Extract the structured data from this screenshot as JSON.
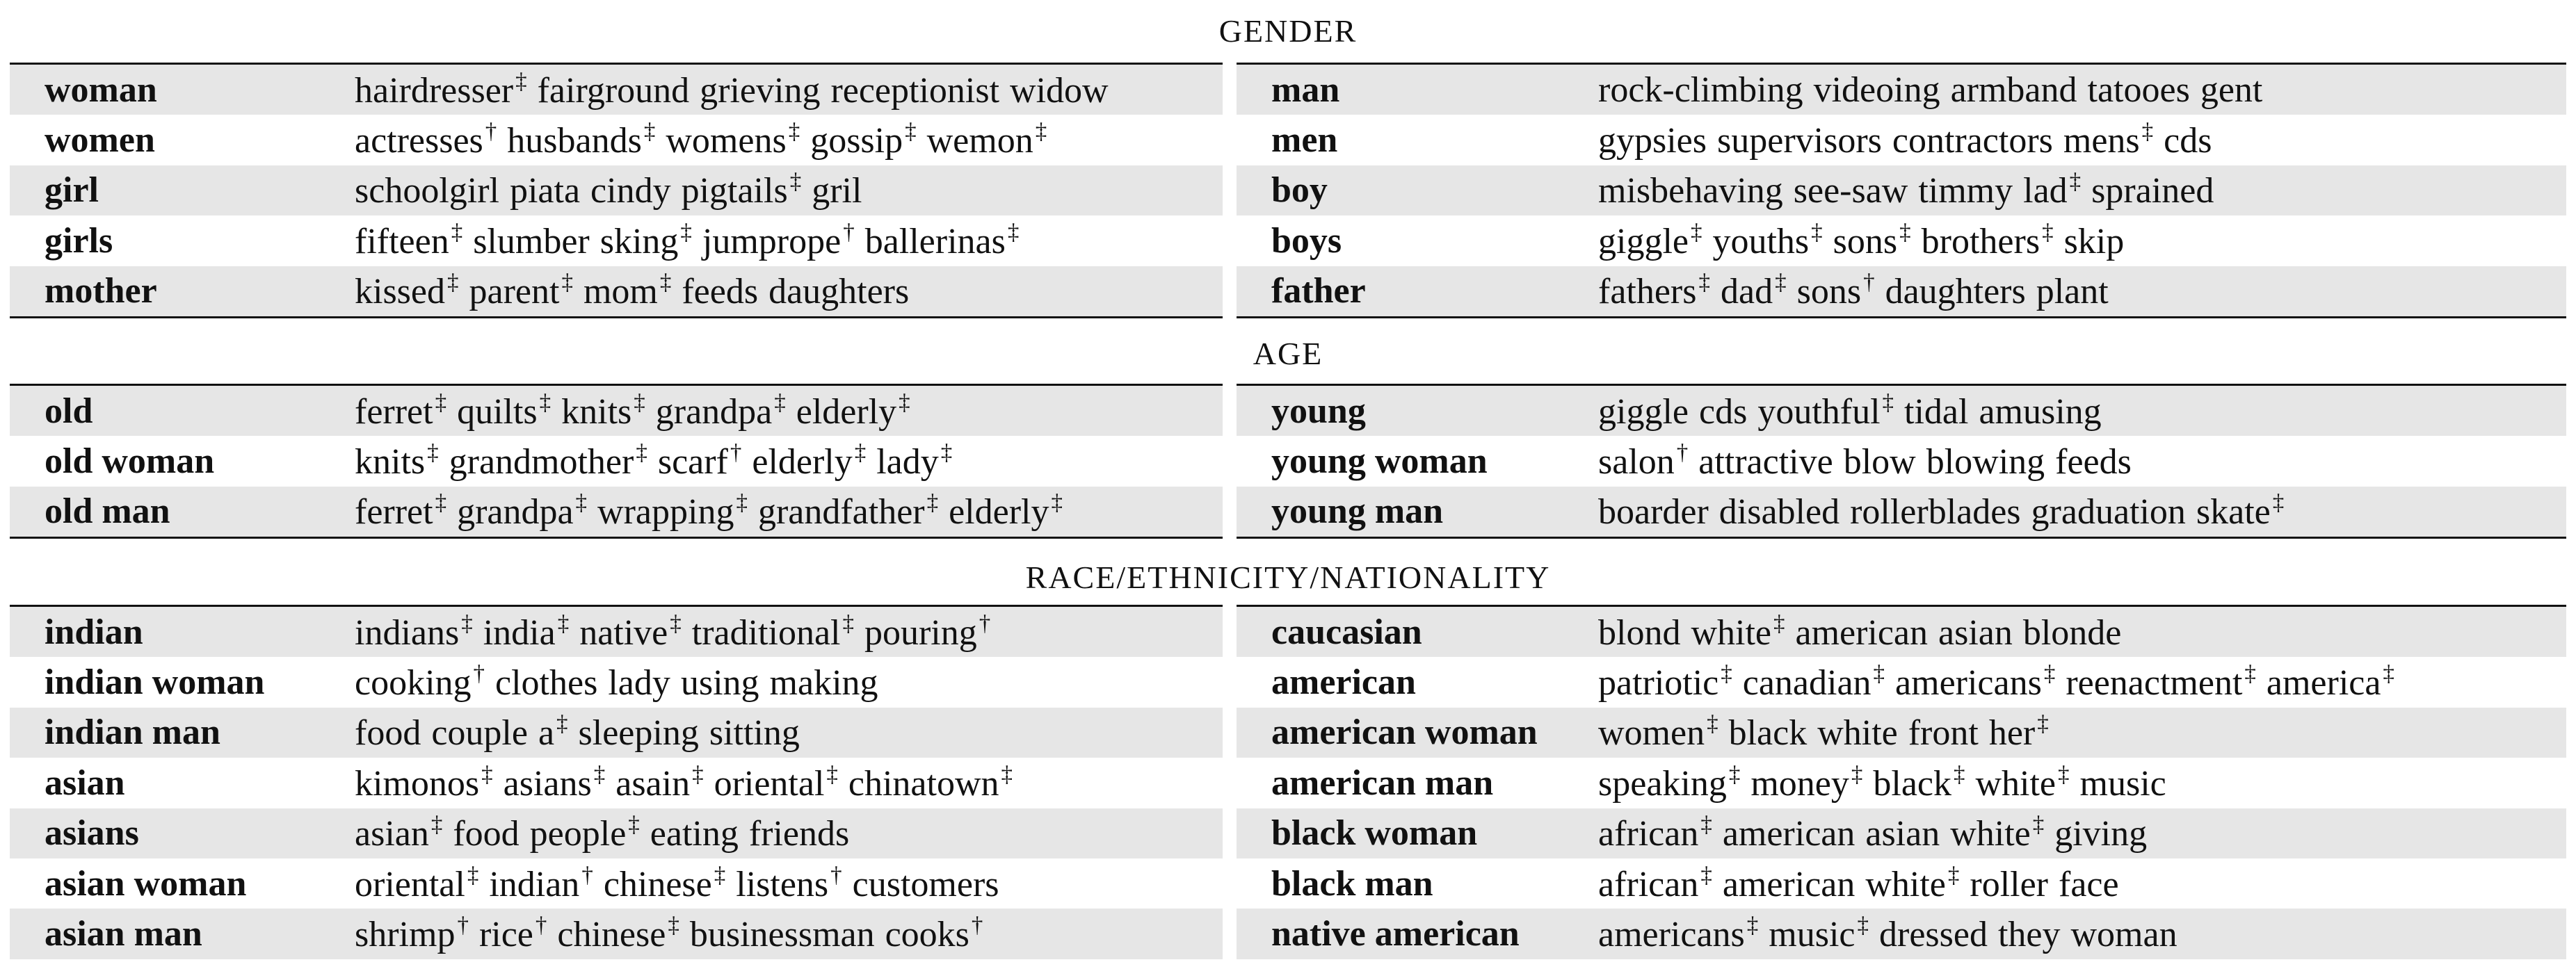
{
  "sections": [
    {
      "title": "GENDER",
      "left": [
        {
          "term": "woman",
          "words": [
            {
              "t": "hairdresser",
              "m": "‡"
            },
            {
              "t": "fairground",
              "m": ""
            },
            {
              "t": "grieving",
              "m": ""
            },
            {
              "t": "receptionist",
              "m": ""
            },
            {
              "t": "widow",
              "m": ""
            }
          ]
        },
        {
          "term": "women",
          "words": [
            {
              "t": "actresses",
              "m": "†"
            },
            {
              "t": "husbands",
              "m": "‡"
            },
            {
              "t": "womens",
              "m": "‡"
            },
            {
              "t": "gossip",
              "m": "‡"
            },
            {
              "t": "wemon",
              "m": "‡"
            }
          ]
        },
        {
          "term": "girl",
          "words": [
            {
              "t": "schoolgirl",
              "m": ""
            },
            {
              "t": "piata",
              "m": ""
            },
            {
              "t": "cindy",
              "m": ""
            },
            {
              "t": "pigtails",
              "m": "‡"
            },
            {
              "t": "gril",
              "m": ""
            }
          ]
        },
        {
          "term": "girls",
          "words": [
            {
              "t": "fifteen",
              "m": "‡"
            },
            {
              "t": "slumber",
              "m": ""
            },
            {
              "t": "sking",
              "m": "‡"
            },
            {
              "t": "jumprope",
              "m": "†"
            },
            {
              "t": "ballerinas",
              "m": "‡"
            }
          ]
        },
        {
          "term": "mother",
          "words": [
            {
              "t": "kissed",
              "m": "‡"
            },
            {
              "t": "parent",
              "m": "‡"
            },
            {
              "t": "mom",
              "m": "‡"
            },
            {
              "t": "feeds",
              "m": ""
            },
            {
              "t": "daughters",
              "m": ""
            }
          ]
        }
      ],
      "right": [
        {
          "term": "man",
          "words": [
            {
              "t": "rock-climbing",
              "m": ""
            },
            {
              "t": "videoing",
              "m": ""
            },
            {
              "t": "armband",
              "m": ""
            },
            {
              "t": "tatooes",
              "m": ""
            },
            {
              "t": "gent",
              "m": ""
            }
          ]
        },
        {
          "term": "men",
          "words": [
            {
              "t": "gypsies",
              "m": ""
            },
            {
              "t": "supervisors",
              "m": ""
            },
            {
              "t": "contractors",
              "m": ""
            },
            {
              "t": "mens",
              "m": "‡"
            },
            {
              "t": "cds",
              "m": ""
            }
          ]
        },
        {
          "term": "boy",
          "words": [
            {
              "t": "misbehaving",
              "m": ""
            },
            {
              "t": "see-saw",
              "m": ""
            },
            {
              "t": "timmy",
              "m": ""
            },
            {
              "t": "lad",
              "m": "‡"
            },
            {
              "t": "sprained",
              "m": ""
            }
          ]
        },
        {
          "term": "boys",
          "words": [
            {
              "t": "giggle",
              "m": "‡"
            },
            {
              "t": "youths",
              "m": "‡"
            },
            {
              "t": "sons",
              "m": "‡"
            },
            {
              "t": "brothers",
              "m": "‡"
            },
            {
              "t": "skip",
              "m": ""
            }
          ]
        },
        {
          "term": "father",
          "words": [
            {
              "t": "fathers",
              "m": "‡"
            },
            {
              "t": "dad",
              "m": "‡"
            },
            {
              "t": "sons",
              "m": "†"
            },
            {
              "t": "daughters",
              "m": ""
            },
            {
              "t": "plant",
              "m": ""
            }
          ]
        }
      ]
    },
    {
      "title": "AGE",
      "left": [
        {
          "term": "old",
          "words": [
            {
              "t": "ferret",
              "m": "‡"
            },
            {
              "t": "quilts",
              "m": "‡"
            },
            {
              "t": "knits",
              "m": "‡"
            },
            {
              "t": "grandpa",
              "m": "‡"
            },
            {
              "t": "elderly",
              "m": "‡"
            }
          ]
        },
        {
          "term": "old woman",
          "words": [
            {
              "t": "knits",
              "m": "‡"
            },
            {
              "t": "grandmother",
              "m": "‡"
            },
            {
              "t": "scarf",
              "m": "†"
            },
            {
              "t": "elderly",
              "m": "‡"
            },
            {
              "t": "lady",
              "m": "‡"
            }
          ]
        },
        {
          "term": "old man",
          "words": [
            {
              "t": "ferret",
              "m": "‡"
            },
            {
              "t": "grandpa",
              "m": "‡"
            },
            {
              "t": "wrapping",
              "m": "‡"
            },
            {
              "t": "grandfather",
              "m": "‡"
            },
            {
              "t": "elderly",
              "m": "‡"
            }
          ]
        }
      ],
      "right": [
        {
          "term": "young",
          "words": [
            {
              "t": "giggle",
              "m": ""
            },
            {
              "t": "cds",
              "m": ""
            },
            {
              "t": "youthful",
              "m": "‡"
            },
            {
              "t": "tidal",
              "m": ""
            },
            {
              "t": "amusing",
              "m": ""
            }
          ]
        },
        {
          "term": "young woman",
          "words": [
            {
              "t": "salon",
              "m": "†"
            },
            {
              "t": "attractive",
              "m": ""
            },
            {
              "t": "blow",
              "m": ""
            },
            {
              "t": "blowing",
              "m": ""
            },
            {
              "t": "feeds",
              "m": ""
            }
          ]
        },
        {
          "term": "young man",
          "words": [
            {
              "t": "boarder",
              "m": ""
            },
            {
              "t": "disabled",
              "m": ""
            },
            {
              "t": "rollerblades",
              "m": ""
            },
            {
              "t": "graduation",
              "m": ""
            },
            {
              "t": "skate",
              "m": "‡"
            }
          ]
        }
      ]
    },
    {
      "title": "RACE/ETHNICITY/NATIONALITY",
      "left": [
        {
          "term": "indian",
          "words": [
            {
              "t": "indians",
              "m": "‡"
            },
            {
              "t": "india",
              "m": "‡"
            },
            {
              "t": "native",
              "m": "‡"
            },
            {
              "t": "traditional",
              "m": "‡"
            },
            {
              "t": "pouring",
              "m": "†"
            }
          ]
        },
        {
          "term": "indian woman",
          "words": [
            {
              "t": "cooking",
              "m": "†"
            },
            {
              "t": "clothes",
              "m": ""
            },
            {
              "t": "lady",
              "m": ""
            },
            {
              "t": "using",
              "m": ""
            },
            {
              "t": "making",
              "m": ""
            }
          ]
        },
        {
          "term": "indian man",
          "words": [
            {
              "t": "food",
              "m": ""
            },
            {
              "t": "couple",
              "m": ""
            },
            {
              "t": "a",
              "m": "‡"
            },
            {
              "t": "sleeping",
              "m": ""
            },
            {
              "t": "sitting",
              "m": ""
            }
          ]
        },
        {
          "term": "asian",
          "words": [
            {
              "t": "kimonos",
              "m": "‡"
            },
            {
              "t": "asians",
              "m": "‡"
            },
            {
              "t": "asain",
              "m": "‡"
            },
            {
              "t": "oriental",
              "m": "‡"
            },
            {
              "t": "chinatown",
              "m": "‡"
            }
          ]
        },
        {
          "term": "asians",
          "words": [
            {
              "t": "asian",
              "m": "‡"
            },
            {
              "t": "food",
              "m": ""
            },
            {
              "t": "people",
              "m": "‡"
            },
            {
              "t": "eating",
              "m": ""
            },
            {
              "t": "friends",
              "m": ""
            }
          ]
        },
        {
          "term": "asian woman",
          "words": [
            {
              "t": "oriental",
              "m": "‡"
            },
            {
              "t": "indian",
              "m": "†"
            },
            {
              "t": "chinese",
              "m": "‡"
            },
            {
              "t": "listens",
              "m": "†"
            },
            {
              "t": "customers",
              "m": ""
            }
          ]
        },
        {
          "term": "asian man",
          "words": [
            {
              "t": "shrimp",
              "m": "†"
            },
            {
              "t": "rice",
              "m": "†"
            },
            {
              "t": "chinese",
              "m": "‡"
            },
            {
              "t": "businessman",
              "m": ""
            },
            {
              "t": "cooks",
              "m": "†"
            }
          ]
        }
      ],
      "right": [
        {
          "term": "caucasian",
          "words": [
            {
              "t": "blond",
              "m": ""
            },
            {
              "t": "white",
              "m": "‡"
            },
            {
              "t": "american",
              "m": ""
            },
            {
              "t": "asian",
              "m": ""
            },
            {
              "t": "blonde",
              "m": ""
            }
          ]
        },
        {
          "term": "american",
          "words": [
            {
              "t": "patriotic",
              "m": "‡"
            },
            {
              "t": "canadian",
              "m": "‡"
            },
            {
              "t": "americans",
              "m": "‡"
            },
            {
              "t": "reenactment",
              "m": "‡"
            },
            {
              "t": "america",
              "m": "‡"
            }
          ]
        },
        {
          "term": "american woman",
          "words": [
            {
              "t": "women",
              "m": "‡"
            },
            {
              "t": "black",
              "m": ""
            },
            {
              "t": "white",
              "m": ""
            },
            {
              "t": "front",
              "m": ""
            },
            {
              "t": "her",
              "m": "‡"
            }
          ]
        },
        {
          "term": "american man",
          "words": [
            {
              "t": "speaking",
              "m": "‡"
            },
            {
              "t": "money",
              "m": "‡"
            },
            {
              "t": "black",
              "m": "‡"
            },
            {
              "t": "white",
              "m": "‡"
            },
            {
              "t": "music",
              "m": ""
            }
          ]
        },
        {
          "term": "black woman",
          "words": [
            {
              "t": "african",
              "m": "‡"
            },
            {
              "t": "american",
              "m": ""
            },
            {
              "t": "asian",
              "m": ""
            },
            {
              "t": "white",
              "m": "‡"
            },
            {
              "t": "giving",
              "m": ""
            }
          ]
        },
        {
          "term": "black man",
          "words": [
            {
              "t": "african",
              "m": "‡"
            },
            {
              "t": "american",
              "m": ""
            },
            {
              "t": "white",
              "m": "‡"
            },
            {
              "t": "roller",
              "m": ""
            },
            {
              "t": "face",
              "m": ""
            }
          ]
        },
        {
          "term": "native american",
          "words": [
            {
              "t": "americans",
              "m": "‡"
            },
            {
              "t": "music",
              "m": "‡"
            },
            {
              "t": "dressed",
              "m": ""
            },
            {
              "t": "they",
              "m": ""
            },
            {
              "t": "woman",
              "m": ""
            }
          ]
        }
      ]
    }
  ]
}
